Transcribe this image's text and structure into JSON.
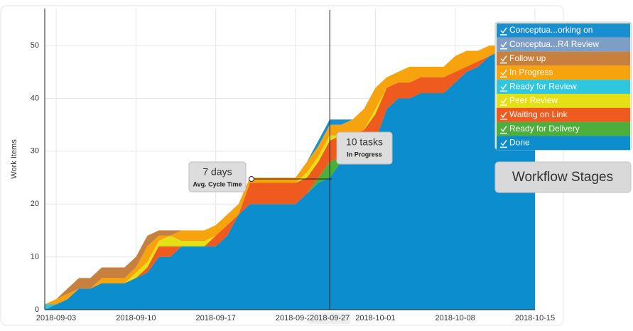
{
  "chart_data": {
    "type": "stacked_area",
    "ylabel": "Work Items",
    "x": [
      "2018-09-02",
      "2018-09-03",
      "2018-09-04",
      "2018-09-05",
      "2018-09-06",
      "2018-09-07",
      "2018-09-08",
      "2018-09-09",
      "2018-09-10",
      "2018-09-11",
      "2018-09-12",
      "2018-09-13",
      "2018-09-14",
      "2018-09-15",
      "2018-09-16",
      "2018-09-17",
      "2018-09-18",
      "2018-09-19",
      "2018-09-20",
      "2018-09-21",
      "2018-09-22",
      "2018-09-23",
      "2018-09-24",
      "2018-09-25",
      "2018-09-26",
      "2018-09-27",
      "2018-09-28",
      "2018-09-29",
      "2018-09-30",
      "2018-10-01",
      "2018-10-02",
      "2018-10-03",
      "2018-10-04",
      "2018-10-05",
      "2018-10-06",
      "2018-10-07",
      "2018-10-08",
      "2018-10-09",
      "2018-10-10",
      "2018-10-11",
      "2018-10-12",
      "2018-10-13",
      "2018-10-14",
      "2018-10-15"
    ],
    "xlim": [
      "2018-09-02",
      "2018-10-15"
    ],
    "xticks": [
      "2018-09-03",
      "2018-09-10",
      "2018-09-17",
      "2018-09-24",
      "2018-10-01",
      "2018-10-08",
      "2018-10-15"
    ],
    "ylim": [
      0,
      57
    ],
    "yticks": [
      0,
      10,
      20,
      30,
      40,
      50
    ],
    "grid": true,
    "hover_date": "2018-09-27",
    "annotations": [
      {
        "text": "7 days",
        "subtext": "Avg. Cycle Time"
      },
      {
        "text": "10 tasks",
        "subtext": "In Progress"
      }
    ],
    "legend_title": "Workflow Stages",
    "series": [
      {
        "name": "Conceptua...orking on",
        "color": "#1a8fd0",
        "values": [
          0,
          0,
          0,
          0,
          0,
          0,
          0,
          0,
          0,
          0,
          0,
          0,
          0,
          0,
          0,
          0,
          0,
          0,
          0,
          0,
          0,
          0,
          0,
          0,
          1,
          1,
          1,
          0,
          0,
          0,
          0,
          0,
          0,
          0,
          0,
          0,
          0,
          0,
          0,
          0,
          0,
          0,
          0,
          0
        ]
      },
      {
        "name": "Conceptua...R4 Review",
        "color": "#7d9fc6",
        "values": [
          0,
          0,
          0,
          0,
          0,
          0,
          0,
          0,
          0,
          0,
          0,
          0,
          0,
          0,
          0,
          0,
          0,
          0,
          0,
          0,
          0,
          0,
          0,
          0,
          0,
          0,
          0,
          0,
          0,
          0,
          0,
          0,
          0,
          0,
          0,
          0,
          0,
          0,
          0,
          0,
          0,
          0,
          0,
          0
        ]
      },
      {
        "name": "Follow up",
        "color": "#c7803d",
        "values": [
          0,
          0,
          1,
          2,
          2,
          2,
          2,
          2,
          2,
          2,
          1,
          1,
          0,
          0,
          0,
          0,
          0,
          0,
          0,
          0,
          0,
          0,
          0,
          0,
          0,
          0,
          0,
          0,
          0,
          0,
          0,
          0,
          0,
          0,
          0,
          0,
          0,
          0,
          0,
          0,
          0,
          0,
          0,
          0
        ]
      },
      {
        "name": "In Progress",
        "color": "#f7a30d",
        "values": [
          0,
          1,
          1,
          0,
          0,
          1,
          1,
          1,
          1,
          3,
          1,
          0,
          2,
          2,
          2,
          2,
          2,
          2,
          1,
          1,
          1,
          1,
          1,
          2,
          2,
          2,
          2,
          3,
          4,
          4,
          2,
          2,
          3,
          2,
          2,
          2,
          3,
          3,
          2,
          2,
          1,
          0,
          0,
          0
        ]
      },
      {
        "name": "Ready for Review",
        "color": "#2fc6df",
        "values": [
          1,
          0,
          0,
          0,
          0,
          0,
          0,
          0,
          0,
          0,
          0,
          0,
          0,
          0,
          0,
          0,
          0,
          0,
          0,
          0,
          0,
          0,
          0,
          0,
          0,
          0,
          0,
          0,
          0,
          0,
          0,
          0,
          0,
          0,
          0,
          0,
          0,
          0,
          0,
          0,
          0,
          0,
          0,
          0
        ]
      },
      {
        "name": "Peer Review",
        "color": "#e4e014",
        "values": [
          0,
          0,
          0,
          0,
          0,
          0,
          0,
          0,
          1,
          1,
          1,
          2,
          1,
          1,
          1,
          0,
          0,
          0,
          0,
          0,
          0,
          0,
          0,
          1,
          1,
          1,
          0,
          0,
          0,
          1,
          0,
          0,
          0,
          0,
          0,
          0,
          0,
          0,
          0,
          0,
          0,
          0,
          0,
          0
        ]
      },
      {
        "name": "Waiting on Link",
        "color": "#ef5a1f",
        "values": [
          0,
          0,
          0,
          0,
          0,
          0,
          0,
          0,
          0,
          1,
          2,
          2,
          0,
          0,
          0,
          2,
          2,
          0,
          4,
          4,
          4,
          4,
          4,
          3,
          3,
          4,
          4,
          4,
          4,
          5,
          4,
          3,
          3,
          3,
          3,
          3,
          2,
          1,
          1,
          0,
          0,
          0,
          0,
          0
        ]
      },
      {
        "name": "Ready for Delivery",
        "color": "#4cae3b",
        "values": [
          0,
          0,
          0,
          0,
          0,
          0,
          0,
          0,
          0,
          0,
          0,
          0,
          0,
          0,
          0,
          0,
          0,
          0,
          0,
          0,
          0,
          0,
          0,
          0,
          1,
          3,
          1,
          1,
          1,
          0,
          0,
          0,
          0,
          0,
          0,
          0,
          0,
          0,
          0,
          0,
          0,
          0,
          0,
          0
        ]
      },
      {
        "name": "Done",
        "color": "#0c8dcd",
        "values": [
          0,
          1,
          2,
          4,
          4,
          5,
          5,
          5,
          6,
          7,
          10,
          10,
          12,
          12,
          12,
          12,
          14,
          18,
          20,
          20,
          20,
          20,
          20,
          22,
          24,
          25,
          28,
          28,
          29,
          32,
          38,
          40,
          40,
          41,
          41,
          41,
          43,
          45,
          46,
          48,
          49,
          50,
          51,
          51
        ]
      }
    ]
  }
}
